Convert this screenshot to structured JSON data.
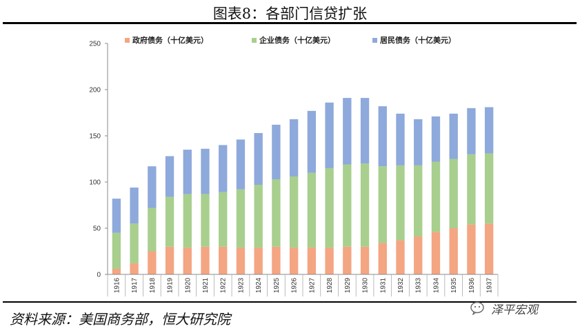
{
  "title": "图表8：各部门信贷扩张",
  "source": "资料来源：美国商务部，恒大研究院",
  "watermark": "泽平宏观",
  "chart_data": {
    "type": "bar",
    "stacked": true,
    "categories": [
      "1916",
      "1917",
      "1918",
      "1919",
      "1920",
      "1921",
      "1922",
      "1923",
      "1924",
      "1925",
      "1926",
      "1927",
      "1928",
      "1929",
      "1930",
      "1931",
      "1932",
      "1933",
      "1934",
      "1935",
      "1936",
      "1937"
    ],
    "series": [
      {
        "name": "政府债务（十亿美元）",
        "color": "#F4A582",
        "values": [
          6,
          12,
          25,
          30,
          29,
          30,
          30,
          29,
          29,
          30,
          29,
          29,
          29,
          30,
          30,
          34,
          37,
          41,
          46,
          50,
          54,
          55
        ]
      },
      {
        "name": "企业债务（十亿美元）",
        "color": "#A8CF8E",
        "values": [
          39,
          43,
          47,
          54,
          58,
          57,
          59,
          63,
          68,
          73,
          77,
          81,
          86,
          89,
          90,
          83,
          81,
          77,
          76,
          75,
          76,
          76
        ]
      },
      {
        "name": "居民债务（十亿美元）",
        "color": "#8EA9DB",
        "values": [
          37,
          39,
          45,
          44,
          48,
          49,
          51,
          54,
          56,
          59,
          62,
          67,
          71,
          72,
          71,
          65,
          56,
          50,
          49,
          49,
          50,
          50
        ]
      }
    ],
    "ylim": [
      0,
      250
    ],
    "yticks": [
      0,
      50,
      100,
      150,
      200,
      250
    ],
    "xlabel": "",
    "ylabel": "",
    "legend": "top"
  }
}
